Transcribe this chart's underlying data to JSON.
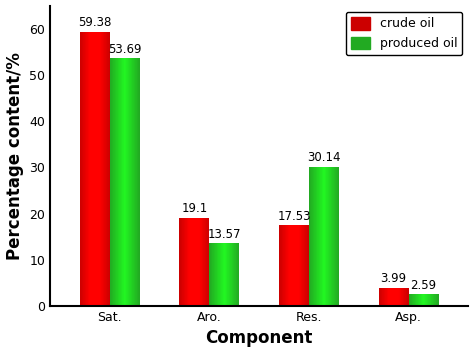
{
  "categories": [
    "Sat.",
    "Aro.",
    "Res.",
    "Asp."
  ],
  "crude_oil": [
    59.38,
    19.1,
    17.53,
    3.99
  ],
  "produced_oil": [
    53.69,
    13.57,
    30.14,
    2.59
  ],
  "bar_color_crude": "#cc0000",
  "bar_color_produced": "#22aa22",
  "title": "",
  "xlabel": "Component",
  "ylabel": "Percentage content/%",
  "ylim": [
    0,
    65
  ],
  "yticks": [
    0,
    10,
    20,
    30,
    40,
    50,
    60
  ],
  "legend_labels": [
    "crude oil",
    "produced oil"
  ],
  "bar_width": 0.3,
  "label_fontsize": 9,
  "axis_label_fontsize": 12,
  "tick_fontsize": 9,
  "annotation_fontsize": 8.5,
  "background_color": "#ffffff"
}
